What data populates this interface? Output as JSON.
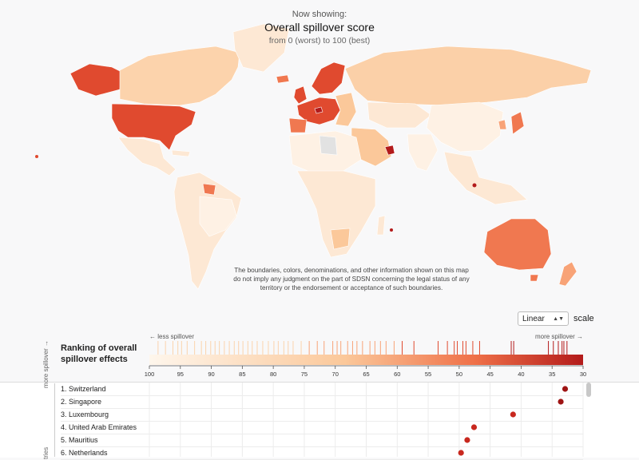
{
  "header": {
    "now_showing": "Now showing:",
    "title": "Overall spillover score",
    "subtitle": "from 0 (worst) to 100 (best)"
  },
  "disclaimer": "The boundaries, colors, denominations, and other information shown on this map do not imply any judgment on the part of SDSN concerning the legal status of any territory or the endorsement or acceptance of such boundaries.",
  "scale": {
    "selected": "Linear",
    "label": "scale"
  },
  "ranking": {
    "title_line1": "Ranking of overall",
    "title_line2": "spillover effects",
    "less_label": "← less spillover",
    "more_label": "more spillover →",
    "axis_ticks": [
      100,
      95,
      90,
      85,
      80,
      75,
      70,
      65,
      60,
      55,
      50,
      45,
      40,
      35,
      30
    ],
    "axis_min": 30,
    "axis_max": 100,
    "strip_values": [
      98.6,
      97.4,
      96.2,
      95.4,
      94.8,
      93.9,
      92.7,
      91.6,
      90.9,
      90.1,
      89.4,
      88.7,
      87.9,
      87.1,
      86.3,
      85.6,
      84.9,
      84.1,
      83.4,
      82.6,
      81.7,
      80.8,
      79.9,
      79.2,
      78.3,
      77.6,
      76.8,
      75.5,
      74.2,
      72.9,
      71.8,
      70.4,
      69.7,
      69.1,
      68.0,
      67.2,
      66.5,
      65.6,
      64.4,
      63.6,
      62.7,
      61.8,
      60.5,
      59.2,
      57.3,
      53.4,
      51.9,
      50.8,
      50.3,
      49.4,
      48.9,
      47.8,
      46.7,
      41.6,
      41.2,
      35.6,
      34.8,
      34.0,
      33.4,
      33.1,
      32.6
    ],
    "rows": [
      {
        "label": "1. Switzerland",
        "value": 32.9
      },
      {
        "label": "2. Singapore",
        "value": 33.6
      },
      {
        "label": "3. Luxembourg",
        "value": 41.3
      },
      {
        "label": "4. United Arab Emirates",
        "value": 47.6
      },
      {
        "label": "5. Mauritius",
        "value": 48.7
      },
      {
        "label": "6. Netherlands",
        "value": 49.7
      }
    ],
    "side_label_top": "more spillover →",
    "side_label_bottom": "tries"
  },
  "colors": {
    "worst": "#b31b1b",
    "high": "#e04a2f",
    "mid": "#f07850",
    "low": "#fbc89a",
    "lowest": "#fde8d4",
    "nodata": "#e2e2e2",
    "dot": "#c8281e"
  }
}
